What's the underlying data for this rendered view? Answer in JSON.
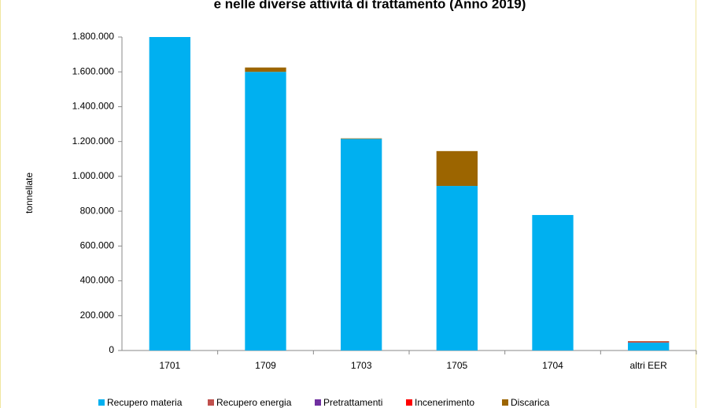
{
  "chart_data": {
    "type": "stacked_bar",
    "title": "e nelle diverse attività di trattamento (Anno 2019)",
    "ylabel": "tonnellate",
    "categories": [
      "1701",
      "1709",
      "1703",
      "1705",
      "1704",
      "altri EER"
    ],
    "series": [
      {
        "name": "Recupero materia",
        "color": "#00b0f0",
        "values": [
          1800000,
          1600000,
          1215000,
          945000,
          778000,
          45000
        ]
      },
      {
        "name": "Recupero energia",
        "color": "#c0504d",
        "values": [
          0,
          0,
          0,
          0,
          0,
          5000
        ]
      },
      {
        "name": "Pretrattamenti",
        "color": "#7030a0",
        "values": [
          0,
          0,
          0,
          0,
          0,
          1000
        ]
      },
      {
        "name": "Incenerimento",
        "color": "#ff0000",
        "values": [
          0,
          0,
          0,
          0,
          0,
          1000
        ]
      },
      {
        "name": "Discarica",
        "color": "#9c6500",
        "values": [
          0,
          25000,
          3000,
          200000,
          0,
          2000
        ]
      }
    ],
    "ylim": [
      0,
      1800000
    ],
    "yticks": [
      0,
      {
        "value": 200000,
        "label": "200.000"
      },
      {
        "value": 400000,
        "label": "400.000"
      },
      {
        "value": 600000,
        "label": "600.000"
      },
      {
        "value": 800000,
        "label": "800.000"
      },
      {
        "value": 1000000,
        "label": "1.000.000"
      },
      {
        "value": 1200000,
        "label": "1.200.000"
      },
      {
        "value": 1400000,
        "label": "1.400.000"
      },
      {
        "value": 1600000,
        "label": "1.600.000"
      },
      {
        "value": 1800000,
        "label": "1.800.000"
      }
    ],
    "grid": false,
    "legend": "bottom"
  }
}
